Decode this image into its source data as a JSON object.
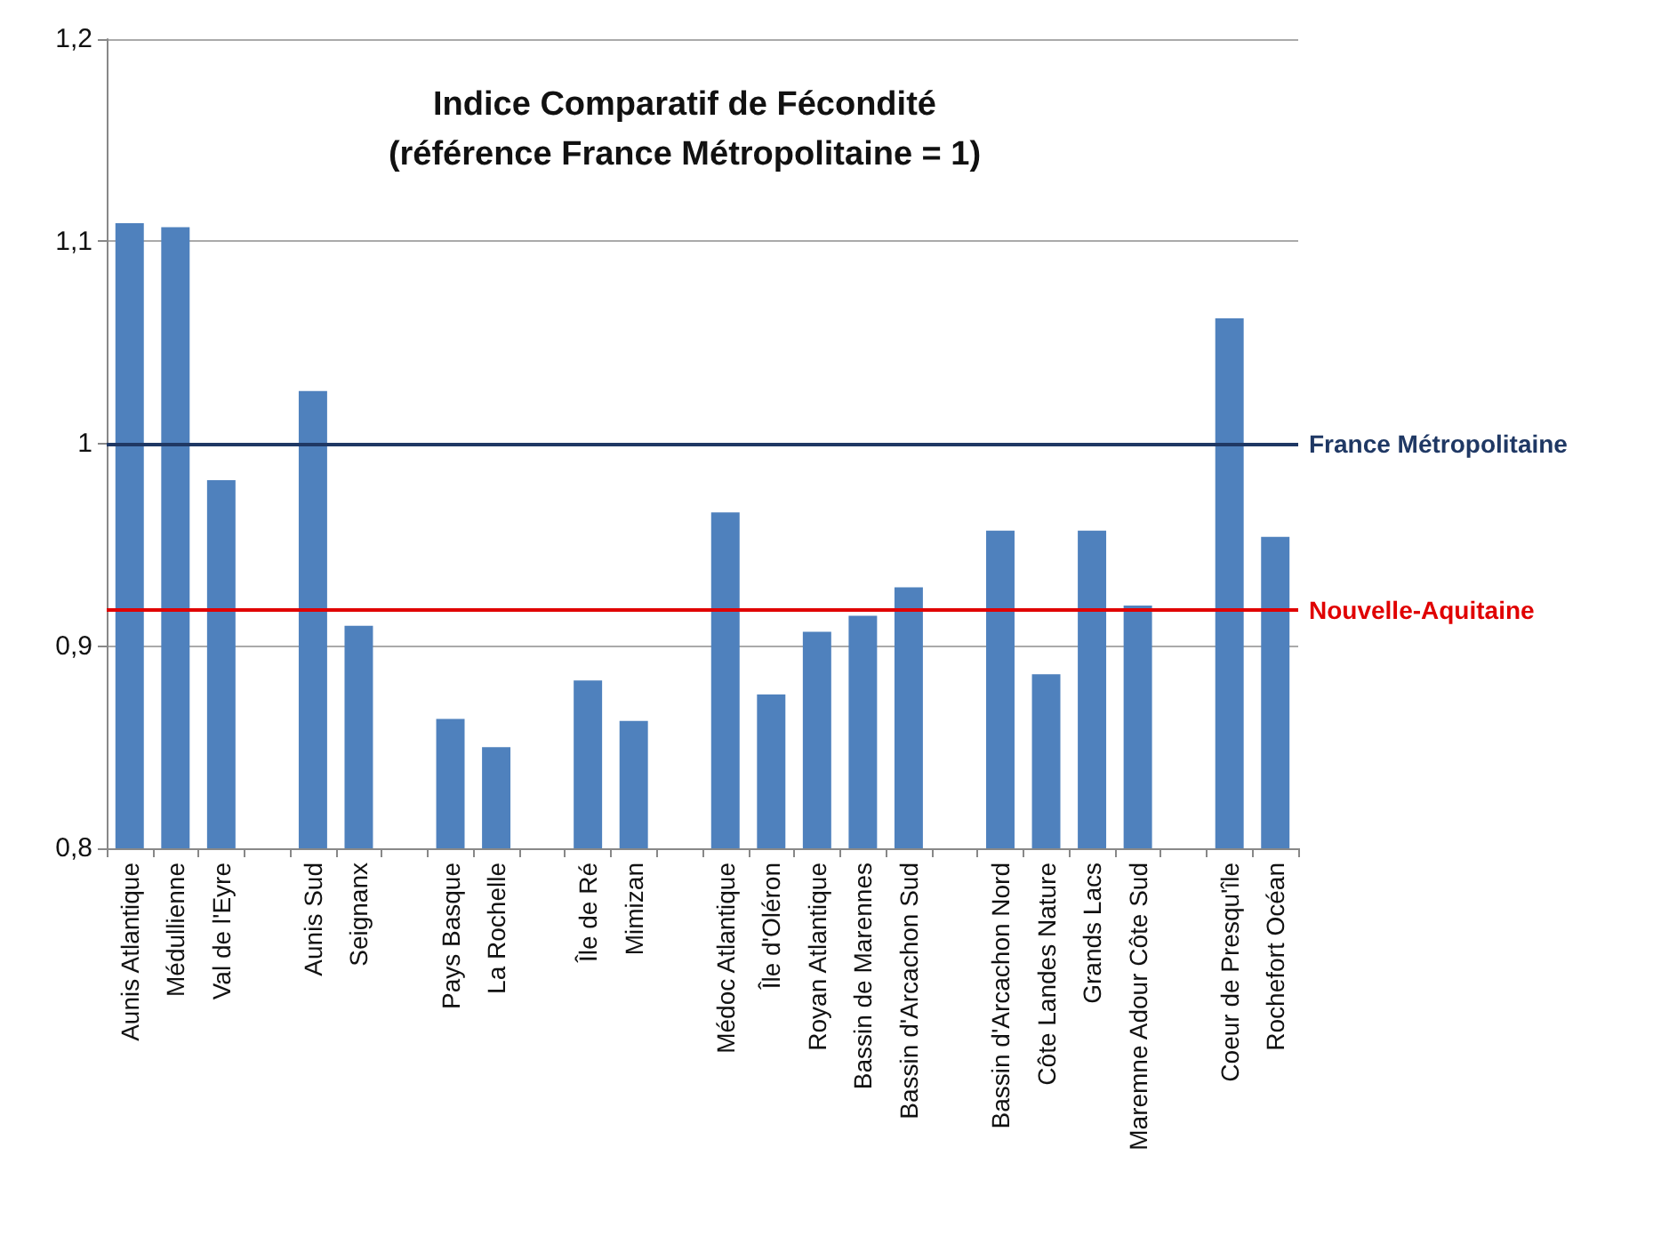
{
  "chart_data": {
    "type": "bar",
    "title": "Indice Comparatif de Fécondité\n(référence France Métropolitaine = 1)",
    "categories": [
      "Aunis Atlantique",
      "Médullienne",
      "Val de l'Eyre",
      null,
      "Aunis Sud",
      "Seignanx",
      null,
      "Pays Basque",
      "La Rochelle",
      null,
      "Île de Ré",
      "Mimizan",
      null,
      "Médoc Atlantique",
      "Île d'Oléron",
      "Royan Atlantique",
      "Bassin de Marennes",
      "Bassin d'Arcachon Sud",
      null,
      "Bassin d'Arcachon Nord",
      "Côte Landes Nature",
      "Grands Lacs",
      "Maremne Adour Côte Sud",
      null,
      "Coeur de Presqu'île",
      "Rochefort Océan"
    ],
    "values": [
      1.109,
      1.107,
      0.982,
      null,
      1.026,
      0.91,
      null,
      0.864,
      0.85,
      null,
      0.883,
      0.863,
      null,
      0.966,
      0.876,
      0.907,
      0.915,
      0.929,
      null,
      0.957,
      0.886,
      0.957,
      0.92,
      null,
      1.062,
      0.954
    ],
    "color": "#4f81bd",
    "ylim": [
      0.8,
      1.2
    ],
    "yticks": [
      {
        "value": 0.8,
        "label": "0,8"
      },
      {
        "value": 0.9,
        "label": "0,9"
      },
      {
        "value": 1,
        "label": "1"
      },
      {
        "value": 1.1,
        "label": "1,1"
      },
      {
        "value": 1.2,
        "label": "1,2"
      }
    ],
    "grid": "y",
    "ref_lines": [
      {
        "axis": "y",
        "value": 1,
        "label": "France Métropolitaine",
        "color": "#1f3864"
      },
      {
        "axis": "y",
        "value": 0.918,
        "label": "Nouvelle-Aquitaine",
        "color": "#e00000"
      }
    ]
  }
}
